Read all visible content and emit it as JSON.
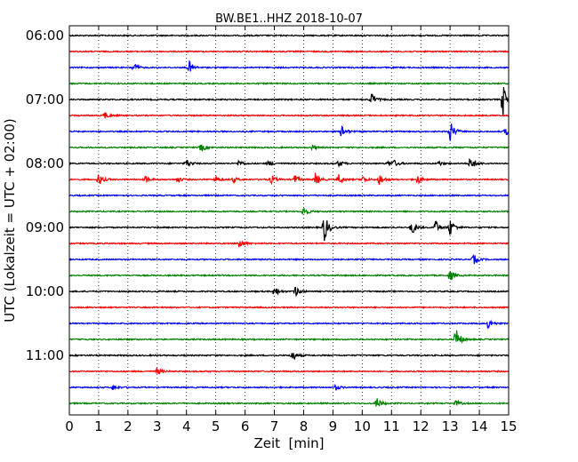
{
  "chart_data": {
    "type": "line",
    "title": "BW.BE1..HHZ 2018-10-07",
    "xlabel": "Zeit  [min]",
    "ylabel": "UTC (Lokalzeit = UTC + 02:00)",
    "xlim": [
      0,
      15
    ],
    "x_ticks": [
      "0",
      "1",
      "2",
      "3",
      "4",
      "5",
      "6",
      "7",
      "8",
      "9",
      "10",
      "11",
      "12",
      "13",
      "14",
      "15"
    ],
    "y_ticks": [
      "06:00",
      "07:00",
      "08:00",
      "09:00",
      "10:00",
      "11:00"
    ],
    "grid": "vertical-dotted",
    "trace_colors": [
      "#000000",
      "#ff0000",
      "#0000ff",
      "#008000"
    ],
    "traces": [
      {
        "row": 0,
        "events": []
      },
      {
        "row": 1,
        "events": []
      },
      {
        "row": 2,
        "events": [
          [
            2.2,
            5
          ],
          [
            4.1,
            7
          ]
        ]
      },
      {
        "row": 3,
        "events": []
      },
      {
        "row": 4,
        "events": [
          [
            10.3,
            8
          ],
          [
            14.8,
            20
          ]
        ]
      },
      {
        "row": 5,
        "events": [
          [
            1.2,
            4
          ]
        ]
      },
      {
        "row": 6,
        "events": [
          [
            9.3,
            7
          ],
          [
            13.0,
            12
          ],
          [
            14.9,
            4
          ]
        ]
      },
      {
        "row": 7,
        "events": [
          [
            4.5,
            5
          ],
          [
            8.3,
            3
          ]
        ]
      },
      {
        "row": 8,
        "events": [
          [
            4.0,
            5
          ],
          [
            5.8,
            4
          ],
          [
            6.8,
            3
          ],
          [
            9.2,
            4
          ],
          [
            10.9,
            3
          ],
          [
            11.1,
            3
          ],
          [
            12.6,
            3
          ],
          [
            13.7,
            8
          ]
        ]
      },
      {
        "row": 9,
        "events": [
          [
            1.0,
            7
          ],
          [
            2.6,
            4
          ],
          [
            3.7,
            3
          ],
          [
            5.0,
            4
          ],
          [
            5.6,
            3
          ],
          [
            6.9,
            5
          ],
          [
            7.7,
            5
          ],
          [
            8.4,
            7
          ],
          [
            9.2,
            6
          ],
          [
            10.0,
            4
          ],
          [
            10.6,
            7
          ],
          [
            11.9,
            5
          ]
        ]
      },
      {
        "row": 10,
        "events": []
      },
      {
        "row": 11,
        "events": [
          [
            8.0,
            6
          ]
        ]
      },
      {
        "row": 12,
        "events": [
          [
            8.7,
            17
          ],
          [
            11.7,
            8
          ],
          [
            12.5,
            8
          ],
          [
            13.0,
            10
          ]
        ]
      },
      {
        "row": 13,
        "events": [
          [
            5.8,
            6
          ]
        ]
      },
      {
        "row": 14,
        "events": [
          [
            13.8,
            6
          ]
        ]
      },
      {
        "row": 15,
        "events": [
          [
            13.0,
            7
          ]
        ]
      },
      {
        "row": 16,
        "events": [
          [
            7.0,
            6
          ],
          [
            7.7,
            7
          ]
        ]
      },
      {
        "row": 17,
        "events": []
      },
      {
        "row": 18,
        "events": [
          [
            14.3,
            6
          ]
        ]
      },
      {
        "row": 19,
        "events": [
          [
            13.2,
            14
          ]
        ]
      },
      {
        "row": 20,
        "events": [
          [
            7.6,
            7
          ]
        ]
      },
      {
        "row": 21,
        "events": [
          [
            3.0,
            4
          ]
        ]
      },
      {
        "row": 22,
        "events": [
          [
            1.5,
            3
          ],
          [
            9.1,
            3
          ]
        ]
      },
      {
        "row": 23,
        "events": [
          [
            10.5,
            7
          ],
          [
            13.2,
            3
          ]
        ]
      }
    ]
  }
}
